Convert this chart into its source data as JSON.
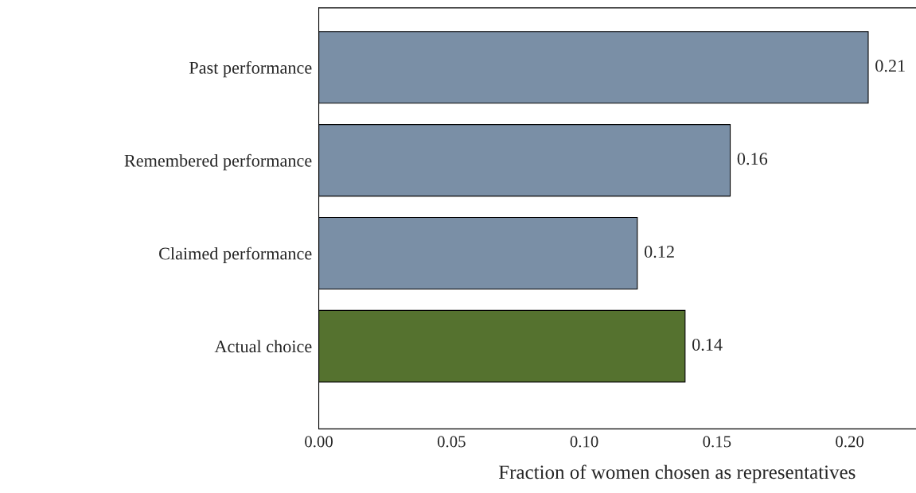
{
  "chart_data": {
    "type": "bar",
    "orientation": "horizontal",
    "xlabel": "Fraction of women chosen as representatives",
    "categories": [
      "Past performance",
      "Remembered performance",
      "Claimed performance",
      "Actual choice"
    ],
    "values": [
      0.207,
      0.155,
      0.12,
      0.138
    ],
    "colors": [
      "#7a8fa6",
      "#7a8fa6",
      "#7a8fa6",
      "#55722f"
    ],
    "value_labels": [
      "0.21",
      "0.16",
      "0.12",
      "0.14"
    ],
    "xlim": [
      0,
      0.225
    ],
    "xticks": [
      "0.00",
      "0.05",
      "0.10",
      "0.15",
      "0.20"
    ],
    "grid": false,
    "legend": false
  }
}
